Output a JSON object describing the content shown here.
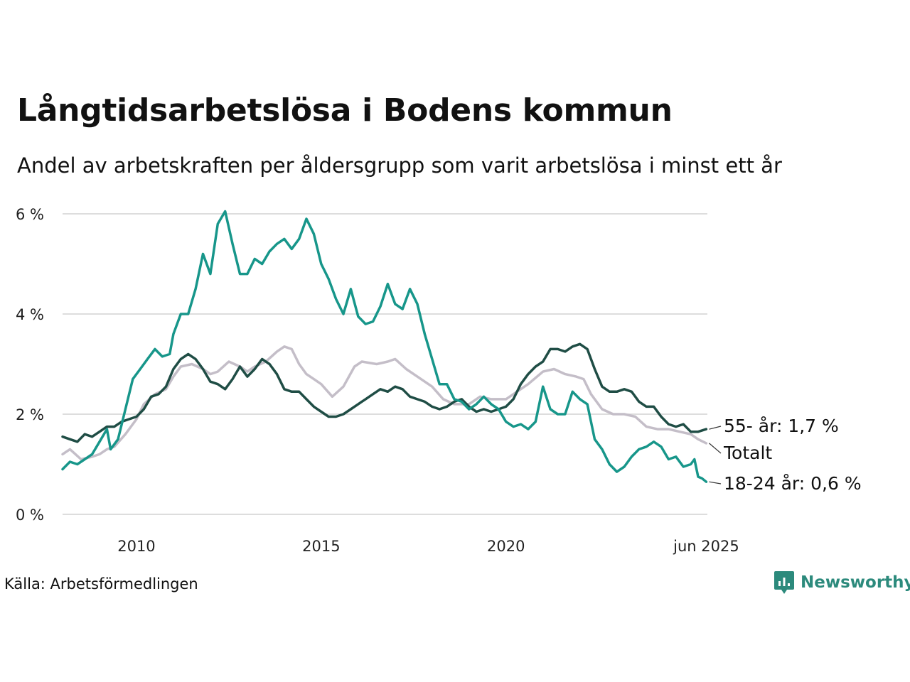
{
  "header": {
    "title": "Långtidsarbetslösa i Bodens kommun",
    "subtitle": "Andel av arbetskraften per åldersgrupp som varit arbetslösa i minst ett år"
  },
  "footer": {
    "source": "Källa: Arbetsförmedlingen",
    "brand": "Newsworthy"
  },
  "colors": {
    "series_55": "#1f4d45",
    "series_total": "#c4bec8",
    "series_18_24": "#17968a",
    "grid": "#dddddd",
    "brand": "#2c8a7c"
  },
  "chart_data": {
    "type": "line",
    "title": "Långtidsarbetslösa i Bodens kommun",
    "subtitle": "Andel av arbetskraften per åldersgrupp som varit arbetslösa i minst ett år",
    "x_range": [
      2008.0,
      2025.45
    ],
    "ylim": [
      0,
      6
    ],
    "y_ticks": [
      0,
      2,
      4,
      6
    ],
    "y_tick_labels": [
      "0 %",
      "2 %",
      "4 %",
      "6 %"
    ],
    "x_ticks": [
      2010,
      2015,
      2020,
      2025.42
    ],
    "x_tick_labels": [
      "2010",
      "2015",
      "2020",
      "jun 2025"
    ],
    "grid": "horizontal",
    "legend": "end-labels",
    "series": [
      {
        "key": "total",
        "end_label": "Totalt",
        "points": [
          [
            2008.0,
            1.2
          ],
          [
            2008.2,
            1.3
          ],
          [
            2008.5,
            1.1
          ],
          [
            2008.8,
            1.15
          ],
          [
            2009.0,
            1.2
          ],
          [
            2009.2,
            1.3
          ],
          [
            2009.4,
            1.35
          ],
          [
            2009.7,
            1.6
          ],
          [
            2010.0,
            1.9
          ],
          [
            2010.2,
            2.2
          ],
          [
            2010.5,
            2.4
          ],
          [
            2010.8,
            2.5
          ],
          [
            2011.0,
            2.75
          ],
          [
            2011.2,
            2.95
          ],
          [
            2011.5,
            3.0
          ],
          [
            2011.8,
            2.9
          ],
          [
            2012.0,
            2.8
          ],
          [
            2012.2,
            2.85
          ],
          [
            2012.5,
            3.05
          ],
          [
            2012.8,
            2.95
          ],
          [
            2013.0,
            2.85
          ],
          [
            2013.2,
            2.95
          ],
          [
            2013.5,
            3.05
          ],
          [
            2013.8,
            3.25
          ],
          [
            2014.0,
            3.35
          ],
          [
            2014.2,
            3.3
          ],
          [
            2014.4,
            3.0
          ],
          [
            2014.6,
            2.8
          ],
          [
            2014.8,
            2.7
          ],
          [
            2015.0,
            2.6
          ],
          [
            2015.3,
            2.35
          ],
          [
            2015.6,
            2.55
          ],
          [
            2015.9,
            2.95
          ],
          [
            2016.1,
            3.05
          ],
          [
            2016.5,
            3.0
          ],
          [
            2016.8,
            3.05
          ],
          [
            2017.0,
            3.1
          ],
          [
            2017.3,
            2.9
          ],
          [
            2017.6,
            2.75
          ],
          [
            2018.0,
            2.55
          ],
          [
            2018.3,
            2.3
          ],
          [
            2018.6,
            2.2
          ],
          [
            2019.0,
            2.2
          ],
          [
            2019.3,
            2.35
          ],
          [
            2019.6,
            2.3
          ],
          [
            2020.0,
            2.3
          ],
          [
            2020.3,
            2.45
          ],
          [
            2020.6,
            2.6
          ],
          [
            2021.0,
            2.85
          ],
          [
            2021.3,
            2.9
          ],
          [
            2021.6,
            2.8
          ],
          [
            2021.9,
            2.75
          ],
          [
            2022.1,
            2.7
          ],
          [
            2022.3,
            2.4
          ],
          [
            2022.6,
            2.1
          ],
          [
            2022.9,
            2.0
          ],
          [
            2023.2,
            2.0
          ],
          [
            2023.5,
            1.95
          ],
          [
            2023.8,
            1.75
          ],
          [
            2024.1,
            1.7
          ],
          [
            2024.4,
            1.7
          ],
          [
            2024.7,
            1.65
          ],
          [
            2025.0,
            1.6
          ],
          [
            2025.2,
            1.5
          ],
          [
            2025.42,
            1.42
          ]
        ]
      },
      {
        "key": "age55",
        "end_label": "55- år: 1,7 %",
        "points": [
          [
            2008.0,
            1.55
          ],
          [
            2008.2,
            1.5
          ],
          [
            2008.4,
            1.45
          ],
          [
            2008.6,
            1.6
          ],
          [
            2008.8,
            1.55
          ],
          [
            2009.0,
            1.65
          ],
          [
            2009.2,
            1.75
          ],
          [
            2009.4,
            1.75
          ],
          [
            2009.6,
            1.85
          ],
          [
            2009.8,
            1.9
          ],
          [
            2010.0,
            1.95
          ],
          [
            2010.2,
            2.1
          ],
          [
            2010.4,
            2.35
          ],
          [
            2010.6,
            2.4
          ],
          [
            2010.8,
            2.55
          ],
          [
            2011.0,
            2.9
          ],
          [
            2011.2,
            3.1
          ],
          [
            2011.4,
            3.2
          ],
          [
            2011.6,
            3.1
          ],
          [
            2011.8,
            2.9
          ],
          [
            2012.0,
            2.65
          ],
          [
            2012.2,
            2.6
          ],
          [
            2012.4,
            2.5
          ],
          [
            2012.6,
            2.7
          ],
          [
            2012.8,
            2.95
          ],
          [
            2013.0,
            2.75
          ],
          [
            2013.2,
            2.9
          ],
          [
            2013.4,
            3.1
          ],
          [
            2013.6,
            3.0
          ],
          [
            2013.8,
            2.8
          ],
          [
            2014.0,
            2.5
          ],
          [
            2014.2,
            2.45
          ],
          [
            2014.4,
            2.45
          ],
          [
            2014.6,
            2.3
          ],
          [
            2014.8,
            2.15
          ],
          [
            2015.0,
            2.05
          ],
          [
            2015.2,
            1.95
          ],
          [
            2015.4,
            1.95
          ],
          [
            2015.6,
            2.0
          ],
          [
            2015.8,
            2.1
          ],
          [
            2016.0,
            2.2
          ],
          [
            2016.2,
            2.3
          ],
          [
            2016.4,
            2.4
          ],
          [
            2016.6,
            2.5
          ],
          [
            2016.8,
            2.45
          ],
          [
            2017.0,
            2.55
          ],
          [
            2017.2,
            2.5
          ],
          [
            2017.4,
            2.35
          ],
          [
            2017.6,
            2.3
          ],
          [
            2017.8,
            2.25
          ],
          [
            2018.0,
            2.15
          ],
          [
            2018.2,
            2.1
          ],
          [
            2018.4,
            2.15
          ],
          [
            2018.6,
            2.25
          ],
          [
            2018.8,
            2.3
          ],
          [
            2019.0,
            2.15
          ],
          [
            2019.2,
            2.05
          ],
          [
            2019.4,
            2.1
          ],
          [
            2019.6,
            2.05
          ],
          [
            2019.8,
            2.1
          ],
          [
            2020.0,
            2.15
          ],
          [
            2020.2,
            2.3
          ],
          [
            2020.4,
            2.6
          ],
          [
            2020.6,
            2.8
          ],
          [
            2020.8,
            2.95
          ],
          [
            2021.0,
            3.05
          ],
          [
            2021.2,
            3.3
          ],
          [
            2021.4,
            3.3
          ],
          [
            2021.6,
            3.25
          ],
          [
            2021.8,
            3.35
          ],
          [
            2022.0,
            3.4
          ],
          [
            2022.2,
            3.3
          ],
          [
            2022.4,
            2.9
          ],
          [
            2022.6,
            2.55
          ],
          [
            2022.8,
            2.45
          ],
          [
            2023.0,
            2.45
          ],
          [
            2023.2,
            2.5
          ],
          [
            2023.4,
            2.45
          ],
          [
            2023.6,
            2.25
          ],
          [
            2023.8,
            2.15
          ],
          [
            2024.0,
            2.15
          ],
          [
            2024.2,
            1.95
          ],
          [
            2024.4,
            1.8
          ],
          [
            2024.6,
            1.75
          ],
          [
            2024.8,
            1.8
          ],
          [
            2025.0,
            1.65
          ],
          [
            2025.2,
            1.65
          ],
          [
            2025.42,
            1.7
          ]
        ]
      },
      {
        "key": "age18_24",
        "end_label": "18-24 år: 0,6 %",
        "points": [
          [
            2008.0,
            0.9
          ],
          [
            2008.2,
            1.05
          ],
          [
            2008.4,
            1.0
          ],
          [
            2008.6,
            1.1
          ],
          [
            2008.8,
            1.2
          ],
          [
            2009.0,
            1.45
          ],
          [
            2009.2,
            1.7
          ],
          [
            2009.3,
            1.3
          ],
          [
            2009.5,
            1.5
          ],
          [
            2009.7,
            2.1
          ],
          [
            2009.9,
            2.7
          ],
          [
            2010.1,
            2.9
          ],
          [
            2010.3,
            3.1
          ],
          [
            2010.5,
            3.3
          ],
          [
            2010.7,
            3.15
          ],
          [
            2010.9,
            3.2
          ],
          [
            2011.0,
            3.6
          ],
          [
            2011.2,
            4.0
          ],
          [
            2011.4,
            4.0
          ],
          [
            2011.6,
            4.5
          ],
          [
            2011.8,
            5.2
          ],
          [
            2012.0,
            4.8
          ],
          [
            2012.2,
            5.8
          ],
          [
            2012.4,
            6.05
          ],
          [
            2012.6,
            5.4
          ],
          [
            2012.8,
            4.8
          ],
          [
            2013.0,
            4.8
          ],
          [
            2013.2,
            5.1
          ],
          [
            2013.4,
            5.0
          ],
          [
            2013.6,
            5.25
          ],
          [
            2013.8,
            5.4
          ],
          [
            2014.0,
            5.5
          ],
          [
            2014.2,
            5.3
          ],
          [
            2014.4,
            5.5
          ],
          [
            2014.6,
            5.9
          ],
          [
            2014.8,
            5.6
          ],
          [
            2015.0,
            5.0
          ],
          [
            2015.2,
            4.7
          ],
          [
            2015.4,
            4.3
          ],
          [
            2015.6,
            4.0
          ],
          [
            2015.8,
            4.5
          ],
          [
            2016.0,
            3.95
          ],
          [
            2016.2,
            3.8
          ],
          [
            2016.4,
            3.85
          ],
          [
            2016.6,
            4.15
          ],
          [
            2016.8,
            4.6
          ],
          [
            2017.0,
            4.2
          ],
          [
            2017.2,
            4.1
          ],
          [
            2017.4,
            4.5
          ],
          [
            2017.6,
            4.2
          ],
          [
            2017.8,
            3.6
          ],
          [
            2018.0,
            3.1
          ],
          [
            2018.2,
            2.6
          ],
          [
            2018.4,
            2.6
          ],
          [
            2018.6,
            2.3
          ],
          [
            2018.8,
            2.25
          ],
          [
            2019.0,
            2.1
          ],
          [
            2019.2,
            2.2
          ],
          [
            2019.4,
            2.35
          ],
          [
            2019.6,
            2.2
          ],
          [
            2019.8,
            2.1
          ],
          [
            2020.0,
            1.85
          ],
          [
            2020.2,
            1.75
          ],
          [
            2020.4,
            1.8
          ],
          [
            2020.6,
            1.7
          ],
          [
            2020.8,
            1.85
          ],
          [
            2021.0,
            2.55
          ],
          [
            2021.2,
            2.1
          ],
          [
            2021.4,
            2.0
          ],
          [
            2021.6,
            2.0
          ],
          [
            2021.8,
            2.45
          ],
          [
            2022.0,
            2.3
          ],
          [
            2022.2,
            2.2
          ],
          [
            2022.4,
            1.5
          ],
          [
            2022.6,
            1.3
          ],
          [
            2022.8,
            1.0
          ],
          [
            2023.0,
            0.85
          ],
          [
            2023.2,
            0.95
          ],
          [
            2023.4,
            1.15
          ],
          [
            2023.6,
            1.3
          ],
          [
            2023.8,
            1.35
          ],
          [
            2024.0,
            1.45
          ],
          [
            2024.2,
            1.35
          ],
          [
            2024.4,
            1.1
          ],
          [
            2024.6,
            1.15
          ],
          [
            2024.8,
            0.95
          ],
          [
            2025.0,
            1.0
          ],
          [
            2025.1,
            1.1
          ],
          [
            2025.2,
            0.75
          ],
          [
            2025.3,
            0.72
          ],
          [
            2025.42,
            0.65
          ]
        ]
      }
    ]
  }
}
